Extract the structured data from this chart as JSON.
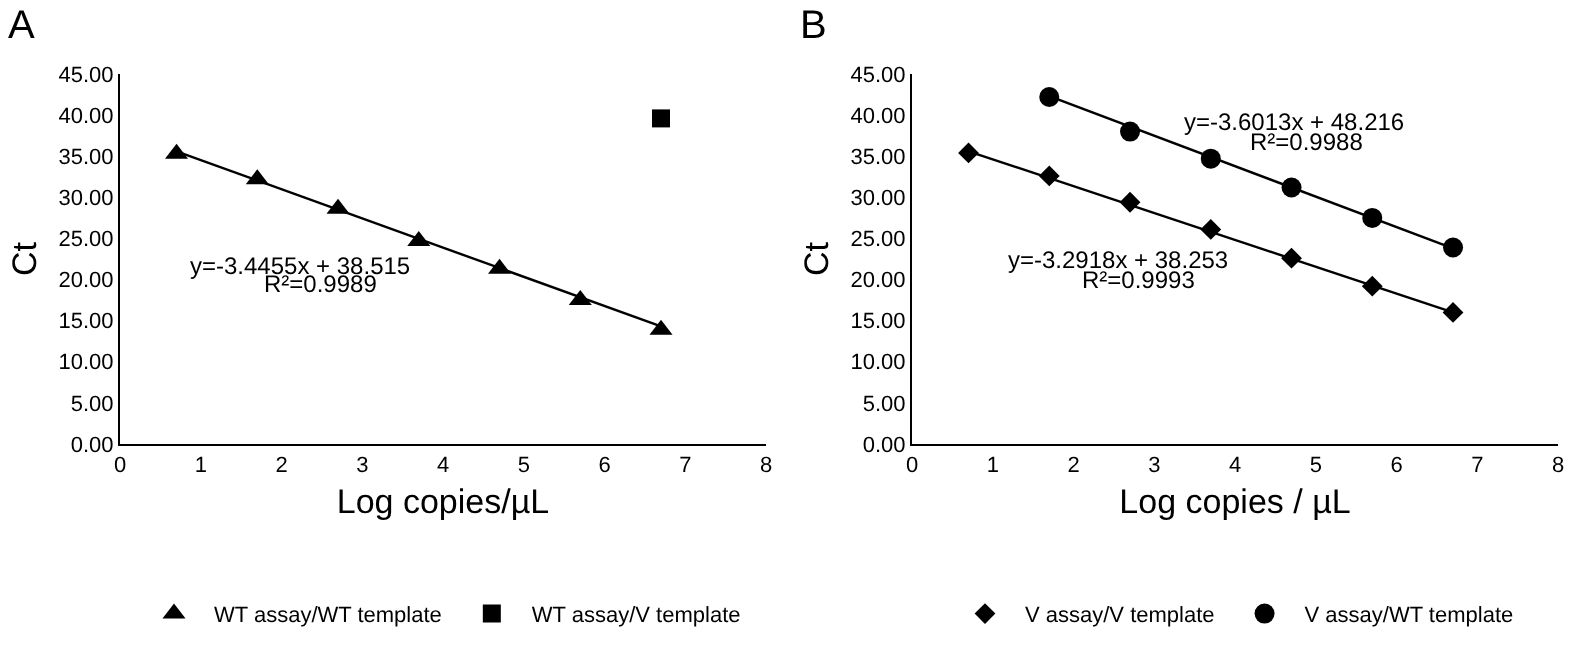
{
  "chart_data": [
    {
      "type": "scatter",
      "title": "A",
      "xlabel": "Log copies/µL",
      "ylabel": "Ct",
      "xlim": [
        0,
        8
      ],
      "xticks": [
        0,
        1,
        2,
        3,
        4,
        5,
        6,
        7,
        8
      ],
      "ylim": [
        0,
        45
      ],
      "yticks": [
        {
          "value": 0,
          "label": "0.00"
        },
        {
          "value": 5,
          "label": "5.00"
        },
        {
          "value": 10,
          "label": "10.00"
        },
        {
          "value": 15,
          "label": "15.00"
        },
        {
          "value": 20,
          "label": "20.00"
        },
        {
          "value": 25,
          "label": "25.00"
        },
        {
          "value": 30,
          "label": "30.00"
        },
        {
          "value": 35,
          "label": "35.00"
        },
        {
          "value": 40,
          "label": "40.00"
        },
        {
          "value": 45,
          "label": "45.00"
        }
      ],
      "grid": false,
      "legend": "bottom",
      "series": [
        {
          "name": "WT assay/WT template",
          "color": "#000000",
          "marker": "triangle",
          "x": [
            0.7,
            1.7,
            2.7,
            3.7,
            4.7,
            5.7,
            6.7
          ],
          "values": [
            35.3,
            32.2,
            28.6,
            24.7,
            21.3,
            17.5,
            13.9
          ]
        },
        {
          "name": "WT assay/V template",
          "color": "#000000",
          "marker": "square",
          "x": [
            6.7
          ],
          "values": [
            39.6
          ]
        },
        {
          "type": "line",
          "color": "#000000",
          "marker": "none",
          "line_style": "solid",
          "x": [
            0.7,
            6.7
          ],
          "values": [
            35.6,
            14.3
          ]
        }
      ],
      "annotations": [
        "y=-3.4455x + 38.515",
        "R²=0.9989"
      ]
    },
    {
      "type": "scatter",
      "title": "B",
      "xlabel": "Log copies / µL",
      "ylabel": "Ct",
      "xlim": [
        0,
        8
      ],
      "xticks": [
        0,
        1,
        2,
        3,
        4,
        5,
        6,
        7,
        8
      ],
      "ylim": [
        0,
        45
      ],
      "yticks": [
        {
          "value": 0,
          "label": "0.00"
        },
        {
          "value": 5,
          "label": "5.00"
        },
        {
          "value": 10,
          "label": "10.00"
        },
        {
          "value": 15,
          "label": "15.00"
        },
        {
          "value": 20,
          "label": "20.00"
        },
        {
          "value": 25,
          "label": "25.00"
        },
        {
          "value": 30,
          "label": "30.00"
        },
        {
          "value": 35,
          "label": "35.00"
        },
        {
          "value": 40,
          "label": "40.00"
        },
        {
          "value": 45,
          "label": "45.00"
        }
      ],
      "grid": false,
      "legend": "bottom",
      "series": [
        {
          "name": "V assay/V template",
          "color": "#000000",
          "marker": "diamond",
          "x": [
            0.7,
            1.7,
            2.7,
            3.7,
            4.7,
            5.7,
            6.7
          ],
          "values": [
            35.4,
            32.6,
            29.4,
            26.1,
            22.6,
            19.2,
            16.0
          ]
        },
        {
          "name": "V assay/WT template",
          "color": "#000000",
          "marker": "circle",
          "x": [
            1.7,
            2.7,
            3.7,
            4.7,
            5.7,
            6.7
          ],
          "values": [
            42.2,
            38.0,
            34.7,
            31.2,
            27.5,
            23.9
          ]
        },
        {
          "type": "line",
          "color": "#000000",
          "marker": "none",
          "line_style": "solid",
          "x": [
            0.7,
            6.7
          ],
          "values": [
            35.6,
            16.0
          ]
        },
        {
          "type": "line",
          "color": "#000000",
          "marker": "none",
          "line_style": "solid",
          "x": [
            1.7,
            6.7
          ],
          "values": [
            42.3,
            23.8
          ]
        }
      ],
      "annotations": [
        "y=-3.6013x + 48.216",
        "R²=0.9988",
        "y=-3.2918x + 38.253",
        "R²=0.9993"
      ]
    }
  ]
}
